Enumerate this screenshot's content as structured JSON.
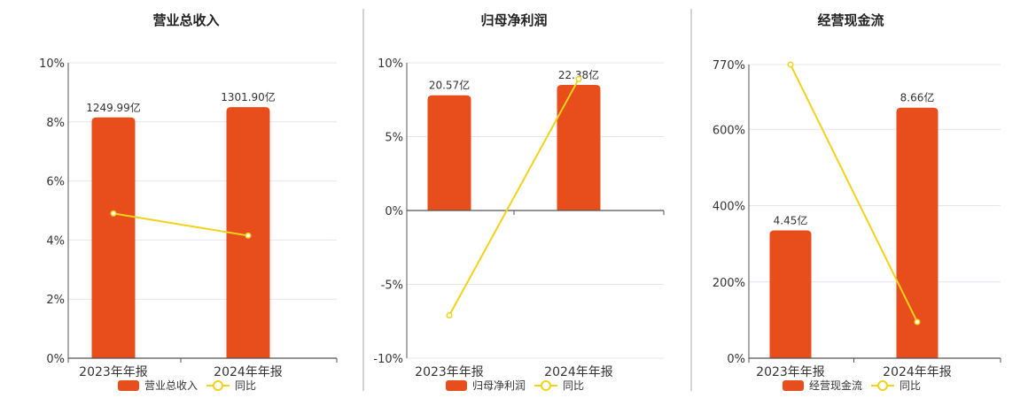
{
  "colors": {
    "bar": "#e84d1c",
    "line": "#f2d21b",
    "grid": "#e4e6ef",
    "axis": "#555555",
    "divider": "#aaaaaa"
  },
  "legend": {
    "line_label": "同比"
  },
  "chart_data": [
    {
      "type": "bar",
      "title": "营业总收入",
      "categories": [
        "2023年年报",
        "2024年年报"
      ],
      "series": [
        {
          "name": "营业总收入",
          "kind": "bar",
          "data_labels": [
            "1249.99亿",
            "1301.90亿"
          ],
          "values": [
            8.15,
            8.5
          ]
        },
        {
          "name": "同比",
          "kind": "line",
          "values": [
            4.9,
            4.15
          ]
        }
      ],
      "yticks": [
        "0%",
        "2%",
        "4%",
        "6%",
        "8%",
        "10%"
      ],
      "ylim": [
        0,
        10
      ],
      "bar_baseline": 0,
      "grid": true,
      "legend_position": "bottom"
    },
    {
      "type": "bar",
      "title": "归母净利润",
      "categories": [
        "2023年年报",
        "2024年年报"
      ],
      "series": [
        {
          "name": "归母净利润",
          "kind": "bar",
          "data_labels": [
            "20.57亿",
            "22.38亿"
          ],
          "values": [
            7.8,
            8.5
          ]
        },
        {
          "name": "同比",
          "kind": "line",
          "values": [
            -7.1,
            8.9
          ]
        }
      ],
      "yticks": [
        "-10%",
        "-5%",
        "0%",
        "5%",
        "10%"
      ],
      "ylim": [
        -10,
        10
      ],
      "bar_baseline": 0,
      "grid": true,
      "legend_position": "bottom"
    },
    {
      "type": "bar",
      "title": "经营现金流",
      "categories": [
        "2023年年报",
        "2024年年报"
      ],
      "series": [
        {
          "name": "经营现金流",
          "kind": "bar",
          "data_labels": [
            "4.45亿",
            "8.66亿"
          ],
          "values": [
            335,
            657
          ]
        },
        {
          "name": "同比",
          "kind": "line",
          "values": [
            770,
            95
          ]
        }
      ],
      "yticks": [
        "0%",
        "200%",
        "400%",
        "600%",
        "770%"
      ],
      "ytick_values": [
        0,
        200,
        400,
        600,
        770
      ],
      "ylim": [
        0,
        770
      ],
      "bar_baseline": 0,
      "grid": true,
      "legend_position": "bottom"
    }
  ]
}
